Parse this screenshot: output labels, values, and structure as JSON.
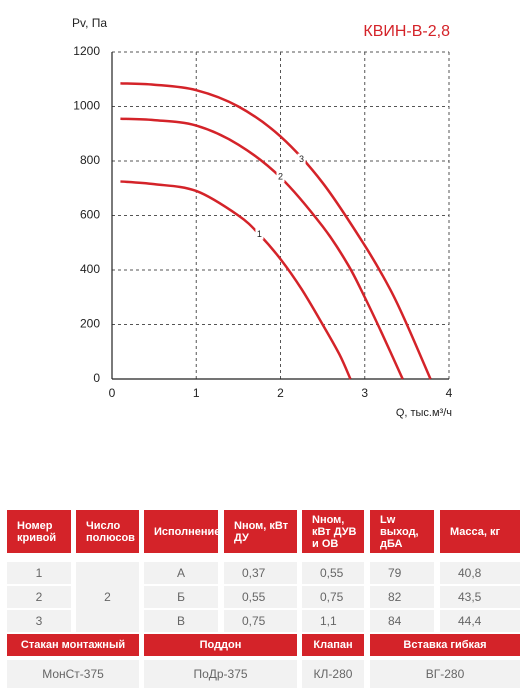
{
  "chart_data": {
    "type": "line",
    "title": "КВИН-В-2,8",
    "y_label": "Pv, Па",
    "x_label": "Q, тыс.м³/ч",
    "xlim": [
      0,
      4
    ],
    "ylim": [
      0,
      1200
    ],
    "xticks": [
      0,
      1,
      2,
      3,
      4
    ],
    "yticks": [
      0,
      200,
      400,
      600,
      800,
      1000,
      1200
    ],
    "grid": true,
    "series": [
      {
        "name": "1",
        "color": "#d42329",
        "x": [
          0.1,
          0.5,
          1.0,
          1.5,
          1.75,
          2.0,
          2.25,
          2.5,
          2.7,
          2.83
        ],
        "values": [
          725,
          715,
          690,
          600,
          530,
          440,
          330,
          200,
          90,
          0
        ]
      },
      {
        "name": "2",
        "color": "#d42329",
        "x": [
          0.1,
          0.5,
          1.0,
          1.5,
          2.0,
          2.5,
          2.8,
          3.0,
          3.2,
          3.45
        ],
        "values": [
          955,
          950,
          930,
          860,
          740,
          560,
          420,
          300,
          170,
          0
        ]
      },
      {
        "name": "3",
        "color": "#d42329",
        "x": [
          0.1,
          0.5,
          1.0,
          1.5,
          2.0,
          2.5,
          3.0,
          3.3,
          3.5,
          3.78
        ],
        "values": [
          1085,
          1080,
          1060,
          1000,
          890,
          720,
          490,
          330,
          200,
          0
        ]
      }
    ]
  },
  "table": {
    "header": [
      "Номер кривой",
      "Число полюсов",
      "Исполнение",
      "Nном, кВт ДУ",
      "Nном, кВт ДУВ и ОВ",
      "Lw выход, дБА",
      "Масса, кг"
    ],
    "poles": "2",
    "rows": [
      [
        "1",
        "А",
        "0,37",
        "0,55",
        "79",
        "40,8"
      ],
      [
        "2",
        "Б",
        "0,55",
        "0,75",
        "82",
        "43,5"
      ],
      [
        "3",
        "В",
        "0,75",
        "1,1",
        "84",
        "44,4"
      ]
    ],
    "accessory_header": [
      "Стакан монтажный",
      "Поддон",
      "Клапан",
      "Вставка гибкая"
    ],
    "accessory_row": [
      "МонСт-375",
      "ПоДр-375",
      "КЛ-280",
      "ВГ-280"
    ]
  }
}
